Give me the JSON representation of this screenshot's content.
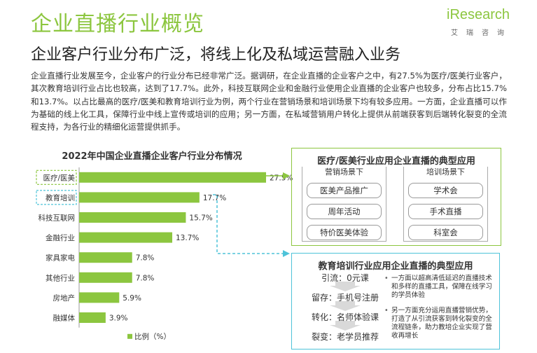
{
  "header": {
    "title": "企业直播行业概览",
    "subtitle": "企业客户行业分布广泛，将线上化及私域运营融入业务",
    "logo_text": "iResearch",
    "logo_sub": "艾瑞咨询"
  },
  "intro": {
    "text": "企业直播行业发展至今，企业客户的行业分布已经非常广泛。据调研，在企业直播的企业客户之中，有27.5%为医疗/医美行业客户，其次教育培训行业占比也较高，达到了17.7%。此外，科技互联网企业和金融行业使用企业直播的企业客户也较多，分布占比15.7%和13.7%。以占比最高的医疗/医美和教育培训行业为例，两个行业在营销场景和培训场景下均有较多应用。一方面，企业直播可以作为基础的线上化工具，保障行业中线上宣传或培训的应用；另一方面，在私域营销用户转化上提供从前端获客到后端转化裂变的全流程支持，为各行业的精细化运营提供抓手。"
  },
  "chart_data": {
    "type": "bar",
    "orientation": "horizontal",
    "title": "2022年中国企业直播企业客户行业分布情况",
    "categories": [
      "医疗/医美",
      "教育培训",
      "科技互联网",
      "金融行业",
      "家具家电",
      "其他行业",
      "房地产",
      "融媒体"
    ],
    "values": [
      27.5,
      17.7,
      15.7,
      13.7,
      7.8,
      7.8,
      5.9,
      3.9
    ],
    "value_labels": [
      "27.5%",
      "17.7%",
      "15.7%",
      "13.7%",
      "7.8%",
      "7.8%",
      "5.9%",
      "3.9%"
    ],
    "legend": "比例（%）",
    "legend_position": "bottom",
    "bar_color": "#8cc63f",
    "highlight_color_1": "#8cc63f",
    "highlight_color_2": "#4ec3d9",
    "grid": false
  },
  "medical_box": {
    "title": "医疗/医美行业应用企业直播的典型应用",
    "marketing": {
      "head": "营销场景下",
      "items": [
        "医美产品推广",
        "周年活动",
        "特价医美体验"
      ]
    },
    "training": {
      "head": "培训场景下",
      "items": [
        "学术会",
        "手术直播",
        "科室会"
      ]
    }
  },
  "education_box": {
    "title": "教育培训行业应用企业直播的典型应用",
    "funnel": [
      "引流：0元课",
      "留存：手机号注册",
      "转化：名师体验课",
      "裂变：老学员推荐"
    ],
    "bullets": [
      "一方面以超高清低延迟的直播技术和多样的直播工具，保障在线学习的学员体验",
      "另一方面充分运用直播营销优势，打造了从引流获客到转化裂变的全流程链条，助力教培企业实现了营收再增长"
    ]
  },
  "colors": {
    "accent_green": "#8cc63f",
    "accent_cyan": "#4ec3d9"
  }
}
